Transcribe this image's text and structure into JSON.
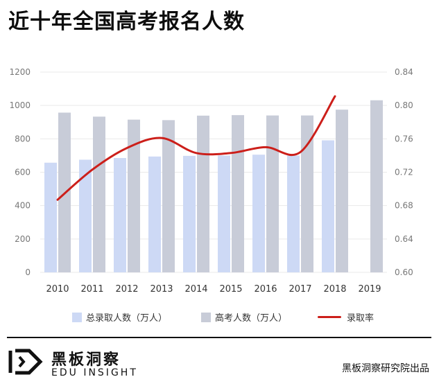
{
  "header": {
    "title": "近十年全国高考报名人数"
  },
  "chart_data": {
    "type": "bar",
    "categories": [
      "2010",
      "2011",
      "2012",
      "2013",
      "2014",
      "2015",
      "2016",
      "2017",
      "2018",
      "2019"
    ],
    "series": [
      {
        "name": "总录取人数（万人）",
        "kind": "bar",
        "axis": "left",
        "color": "#cdd9f5",
        "values": [
          657,
          675,
          685,
          694,
          698,
          700,
          705,
          700,
          791,
          null
        ]
      },
      {
        "name": "高考人数（万人）",
        "kind": "bar",
        "axis": "left",
        "color": "#c8ccd8",
        "values": [
          957,
          933,
          915,
          912,
          939,
          942,
          940,
          940,
          975,
          1031
        ]
      },
      {
        "name": "录取率",
        "kind": "line",
        "axis": "right",
        "color": "#cc1f1a",
        "values": [
          0.687,
          0.723,
          0.749,
          0.761,
          0.743,
          0.743,
          0.75,
          0.744,
          0.811,
          null
        ]
      }
    ],
    "y_left": {
      "min": 0,
      "max": 1200,
      "ticks": [
        "0",
        "200",
        "400",
        "600",
        "800",
        "1000",
        "1200"
      ]
    },
    "y_right": {
      "min": 0.6,
      "max": 0.84,
      "ticks": [
        "0.60",
        "0.64",
        "0.68",
        "0.72",
        "0.76",
        "0.80",
        "0.84"
      ]
    },
    "grid": true,
    "legend_position": "bottom"
  },
  "footer": {
    "brand_cn": "黑板洞察",
    "brand_en": "EDU INSIGHT",
    "credit": "黑板洞察研究院出品"
  }
}
